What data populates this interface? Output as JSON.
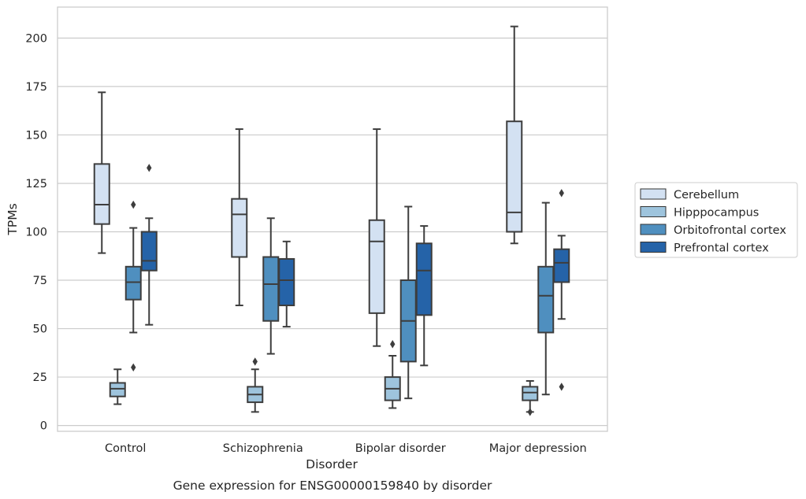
{
  "chart_data": {
    "type": "box",
    "xlabel": "Disorder",
    "ylabel": "TPMs",
    "caption": "Gene expression for ENSG00000159840 by disorder",
    "categories": [
      "Control",
      "Schizophrenia",
      "Bipolar disorder",
      "Major depression"
    ],
    "ylim": [
      -3,
      216
    ],
    "yticks": [
      0,
      25,
      50,
      75,
      100,
      125,
      150,
      175,
      200
    ],
    "grid": true,
    "legend_position": "right",
    "series": [
      {
        "name": "Cerebellum",
        "color": "#d3e1f2",
        "boxes": [
          {
            "whislo": 89,
            "q1": 104,
            "med": 114,
            "q3": 135,
            "whishi": 172,
            "fliers": []
          },
          {
            "whislo": 62,
            "q1": 87,
            "med": 109,
            "q3": 117,
            "whishi": 153,
            "fliers": []
          },
          {
            "whislo": 41,
            "q1": 58,
            "med": 95,
            "q3": 106,
            "whishi": 153,
            "fliers": []
          },
          {
            "whislo": 94,
            "q1": 100,
            "med": 110,
            "q3": 157,
            "whishi": 206,
            "fliers": []
          }
        ]
      },
      {
        "name": "Hipppocampus",
        "color": "#9ec4dd",
        "boxes": [
          {
            "whislo": 11,
            "q1": 15,
            "med": 19,
            "q3": 22,
            "whishi": 29,
            "fliers": []
          },
          {
            "whislo": 7,
            "q1": 12,
            "med": 16,
            "q3": 20,
            "whishi": 29,
            "fliers": [
              33
            ]
          },
          {
            "whislo": 9,
            "q1": 13,
            "med": 19,
            "q3": 25,
            "whishi": 36,
            "fliers": [
              42
            ]
          },
          {
            "whislo": 7,
            "q1": 13,
            "med": 17,
            "q3": 20,
            "whishi": 23,
            "fliers": [
              7
            ]
          }
        ]
      },
      {
        "name": "Orbitofrontal cortex",
        "color": "#4f8fbf",
        "boxes": [
          {
            "whislo": 48,
            "q1": 65,
            "med": 74,
            "q3": 82,
            "whishi": 102,
            "fliers": [
              30,
              114
            ]
          },
          {
            "whislo": 37,
            "q1": 54,
            "med": 73,
            "q3": 87,
            "whishi": 107,
            "fliers": []
          },
          {
            "whislo": 14,
            "q1": 33,
            "med": 54,
            "q3": 75,
            "whishi": 113,
            "fliers": []
          },
          {
            "whislo": 16,
            "q1": 48,
            "med": 67,
            "q3": 82,
            "whishi": 115,
            "fliers": []
          }
        ]
      },
      {
        "name": "Prefrontal cortex",
        "color": "#2563a8",
        "boxes": [
          {
            "whislo": 52,
            "q1": 80,
            "med": 85,
            "q3": 100,
            "whishi": 107,
            "fliers": [
              133
            ]
          },
          {
            "whislo": 51,
            "q1": 62,
            "med": 75,
            "q3": 86,
            "whishi": 95,
            "fliers": []
          },
          {
            "whislo": 31,
            "q1": 57,
            "med": 80,
            "q3": 94,
            "whishi": 103,
            "fliers": []
          },
          {
            "whislo": 55,
            "q1": 74,
            "med": 84,
            "q3": 91,
            "whishi": 98,
            "fliers": [
              20,
              120
            ]
          }
        ]
      }
    ]
  }
}
